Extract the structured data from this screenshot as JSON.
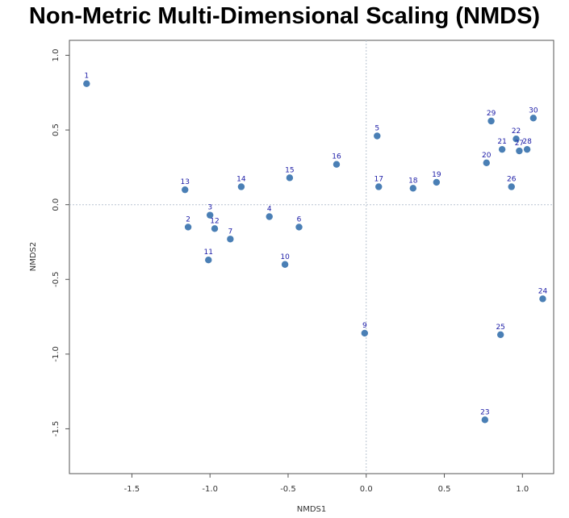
{
  "chart_data": {
    "type": "scatter",
    "title": "Non-Metric Multi-Dimensional Scaling (NMDS)",
    "xlabel": "NMDS1",
    "ylabel": "NMDS2",
    "xlim": [
      -1.9,
      1.2
    ],
    "ylim": [
      -1.8,
      1.1
    ],
    "x_ticks": [
      -1.5,
      -1.0,
      -0.5,
      0.0,
      0.5,
      1.0
    ],
    "x_tick_labels": [
      "-1.5",
      "-1.0",
      "-0.5",
      "0.0",
      "0.5",
      "1.0"
    ],
    "y_ticks": [
      1.0,
      0.5,
      0.0,
      -0.5,
      -1.0,
      -1.5
    ],
    "y_tick_labels": [
      "1.0",
      "0.5",
      "0.0",
      "-0.5",
      "-1.0",
      "-1.5"
    ],
    "reference_lines": {
      "x": 0.0,
      "y": 0.0
    },
    "grid": false,
    "point_color": "#4a7fb5",
    "label_color": "#1a1aa6",
    "points": [
      {
        "label": "1",
        "x": -1.79,
        "y": 0.81
      },
      {
        "label": "2",
        "x": -1.14,
        "y": -0.15
      },
      {
        "label": "3",
        "x": -1.0,
        "y": -0.07
      },
      {
        "label": "4",
        "x": -0.62,
        "y": -0.08
      },
      {
        "label": "5",
        "x": 0.07,
        "y": 0.46
      },
      {
        "label": "6",
        "x": -0.43,
        "y": -0.15
      },
      {
        "label": "7",
        "x": -0.87,
        "y": -0.23
      },
      {
        "label": "9",
        "x": -0.01,
        "y": -0.86
      },
      {
        "label": "10",
        "x": -0.52,
        "y": -0.4
      },
      {
        "label": "11",
        "x": -1.01,
        "y": -0.37
      },
      {
        "label": "12",
        "x": -0.97,
        "y": -0.16
      },
      {
        "label": "13",
        "x": -1.16,
        "y": 0.1
      },
      {
        "label": "14",
        "x": -0.8,
        "y": 0.12
      },
      {
        "label": "15",
        "x": -0.49,
        "y": 0.18
      },
      {
        "label": "16",
        "x": -0.19,
        "y": 0.27
      },
      {
        "label": "17",
        "x": 0.08,
        "y": 0.12
      },
      {
        "label": "18",
        "x": 0.3,
        "y": 0.11
      },
      {
        "label": "19",
        "x": 0.45,
        "y": 0.15
      },
      {
        "label": "20",
        "x": 0.77,
        "y": 0.28
      },
      {
        "label": "21",
        "x": 0.87,
        "y": 0.37
      },
      {
        "label": "22",
        "x": 0.96,
        "y": 0.44
      },
      {
        "label": "23",
        "x": 0.76,
        "y": -1.44
      },
      {
        "label": "24",
        "x": 1.13,
        "y": -0.63
      },
      {
        "label": "25",
        "x": 0.86,
        "y": -0.87
      },
      {
        "label": "26",
        "x": 0.93,
        "y": 0.12
      },
      {
        "label": "27",
        "x": 0.98,
        "y": 0.36
      },
      {
        "label": "28",
        "x": 1.03,
        "y": 0.37
      },
      {
        "label": "29",
        "x": 0.8,
        "y": 0.56
      },
      {
        "label": "30",
        "x": 1.07,
        "y": 0.58
      }
    ]
  }
}
